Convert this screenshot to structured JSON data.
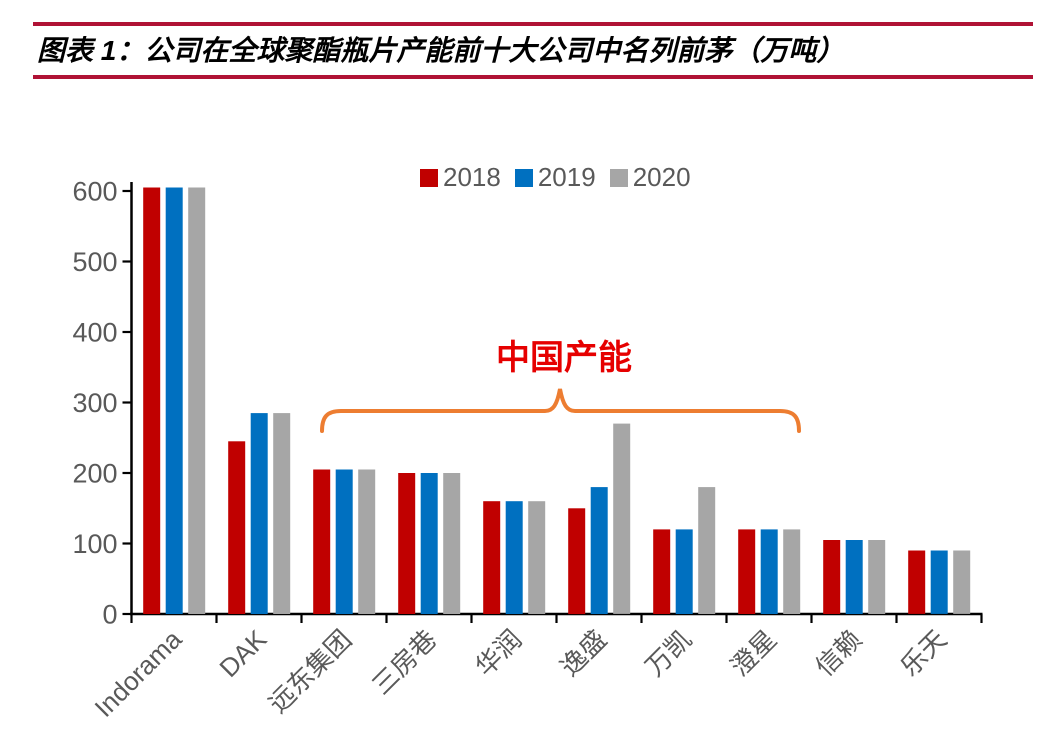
{
  "header": {
    "figure_label": "图表 1：",
    "title": "图表 1：公司在全球聚酯瓶片产能前十大公司中名列前茅（万吨）",
    "rule_color": "#B01235"
  },
  "colors": {
    "axis": "#000000",
    "tick_label": "#595959",
    "title_text": "#000000",
    "bar_2018": "#C00000",
    "bar_2019": "#0070C0",
    "bar_2020": "#A6A6A6",
    "annotation_text": "#E60000",
    "brace": "#ED7D31",
    "page_background": "#FFFFFF"
  },
  "chart_data": {
    "type": "bar",
    "title": "公司在全球聚酯瓶片产能前十大公司中名列前茅（万吨）",
    "unit": "万吨",
    "categories": [
      "Indorama",
      "DAK",
      "远东集团",
      "三房巷",
      "华润",
      "逸盛",
      "万凯",
      "澄星",
      "信赖",
      "乐天"
    ],
    "series": [
      {
        "name": "2018",
        "color": "#C00000",
        "values": [
          605,
          245,
          205,
          200,
          160,
          150,
          120,
          120,
          105,
          90
        ]
      },
      {
        "name": "2019",
        "color": "#0070C0",
        "values": [
          605,
          285,
          205,
          200,
          160,
          180,
          120,
          120,
          105,
          90
        ]
      },
      {
        "name": "2020",
        "color": "#A6A6A6",
        "values": [
          605,
          285,
          205,
          200,
          160,
          270,
          180,
          120,
          105,
          90
        ]
      }
    ],
    "xlabel": "",
    "ylabel": "",
    "ylim": [
      0,
      600
    ],
    "yticks": [
      0,
      100,
      200,
      300,
      400,
      500,
      600
    ],
    "grid": false,
    "legend_position": "top",
    "x_label_rotation_deg": 45,
    "annotation": {
      "text": "中国产能",
      "covers_categories": [
        "远东集团",
        "三房巷",
        "华润",
        "逸盛",
        "万凯",
        "澄星"
      ]
    }
  }
}
